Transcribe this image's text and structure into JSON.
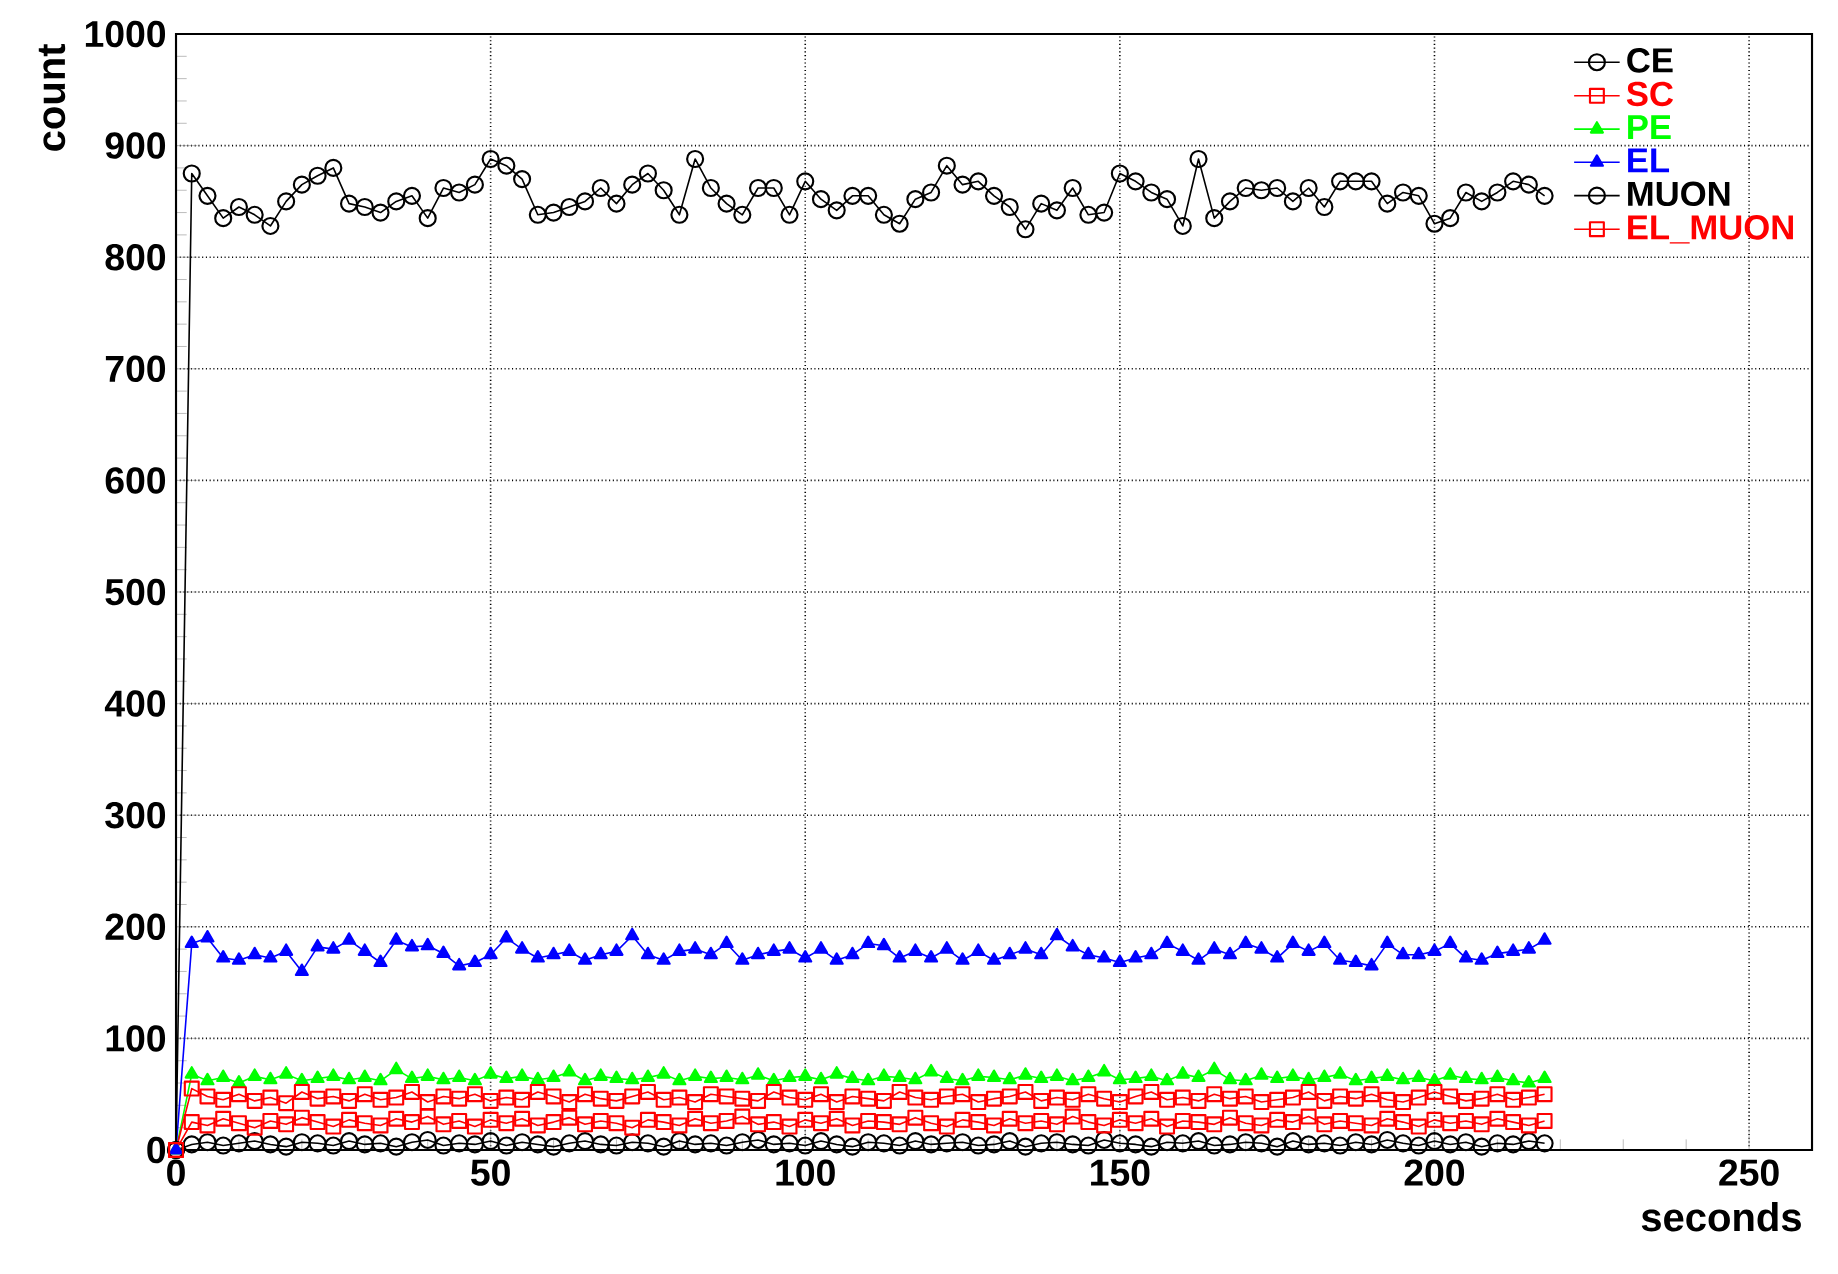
{
  "chart_data": {
    "type": "line",
    "xlabel": "seconds",
    "ylabel": "count",
    "x": [
      0,
      2.5,
      5,
      7.5,
      10,
      12.5,
      15,
      17.5,
      20,
      22.5,
      25,
      27.5,
      30,
      32.5,
      35,
      37.5,
      40,
      42.5,
      45,
      47.5,
      50,
      52.5,
      55,
      57.5,
      60,
      62.5,
      65,
      67.5,
      70,
      72.5,
      75,
      77.5,
      80,
      82.5,
      85,
      87.5,
      90,
      92.5,
      95,
      97.5,
      100,
      102.5,
      105,
      107.5,
      110,
      112.5,
      115,
      117.5,
      120,
      122.5,
      125,
      127.5,
      130,
      132.5,
      135,
      137.5,
      140,
      142.5,
      145,
      147.5,
      150,
      152.5,
      155,
      157.5,
      160,
      162.5,
      165,
      167.5,
      170,
      172.5,
      175,
      177.5,
      180,
      182.5,
      185,
      187.5,
      190,
      192.5,
      195,
      197.5,
      200,
      202.5,
      205,
      207.5,
      210,
      212.5,
      215,
      217.5
    ],
    "series": [
      {
        "name": "CE",
        "color": "#000000",
        "marker": "circle",
        "values": [
          0,
          5,
          7,
          4,
          6,
          8,
          5,
          3,
          7,
          6,
          4,
          8,
          5,
          6,
          3,
          7,
          9,
          4,
          6,
          5,
          8,
          4,
          7,
          5,
          3,
          6,
          8,
          5,
          4,
          7,
          6,
          3,
          8,
          5,
          6,
          4,
          7,
          9,
          5,
          6,
          4,
          8,
          5,
          3,
          7,
          6,
          4,
          8,
          5,
          6,
          7,
          4,
          5,
          8,
          3,
          6,
          7,
          5,
          4,
          9,
          6,
          5,
          3,
          7,
          6,
          8,
          4,
          5,
          7,
          6,
          3,
          8,
          5,
          6,
          4,
          7,
          5,
          9,
          6,
          4,
          8,
          5,
          7,
          3,
          6,
          5,
          8,
          6
        ]
      },
      {
        "name": "SC",
        "color": "#ff0000",
        "marker": "square",
        "values": [
          0,
          25,
          22,
          28,
          24,
          20,
          26,
          23,
          29,
          25,
          21,
          27,
          24,
          22,
          28,
          25,
          30,
          23,
          26,
          21,
          27,
          24,
          28,
          22,
          25,
          29,
          23,
          26,
          24,
          20,
          27,
          25,
          22,
          28,
          24,
          26,
          30,
          23,
          25,
          21,
          27,
          24,
          28,
          22,
          26,
          25,
          23,
          29,
          24,
          21,
          27,
          25,
          22,
          28,
          24,
          26,
          23,
          30,
          25,
          22,
          27,
          24,
          28,
          21,
          26,
          25,
          23,
          29,
          24,
          22,
          27,
          25,
          30,
          23,
          26,
          24,
          22,
          28,
          25,
          21,
          27,
          24,
          26,
          23,
          28,
          25,
          22,
          26
        ]
      },
      {
        "name": "PE",
        "color": "#00ff00",
        "marker": "triangle",
        "values": [
          0,
          68,
          62,
          65,
          60,
          66,
          63,
          68,
          62,
          64,
          66,
          63,
          65,
          62,
          72,
          64,
          66,
          63,
          65,
          62,
          68,
          64,
          66,
          63,
          65,
          70,
          62,
          66,
          64,
          63,
          65,
          68,
          62,
          66,
          64,
          65,
          63,
          67,
          62,
          65,
          66,
          63,
          68,
          64,
          62,
          66,
          65,
          63,
          70,
          64,
          62,
          66,
          65,
          63,
          67,
          64,
          66,
          62,
          65,
          70,
          63,
          64,
          66,
          62,
          68,
          65,
          72,
          63,
          62,
          67,
          64,
          66,
          63,
          65,
          68,
          62,
          64,
          66,
          63,
          65,
          62,
          67,
          64,
          63,
          65,
          62,
          60,
          64
        ]
      },
      {
        "name": "EL",
        "color": "#0000ff",
        "marker": "triangle",
        "values": [
          0,
          185,
          190,
          172,
          170,
          175,
          172,
          178,
          160,
          182,
          180,
          188,
          178,
          168,
          188,
          182,
          183,
          176,
          165,
          168,
          175,
          190,
          180,
          172,
          175,
          178,
          170,
          175,
          178,
          192,
          175,
          170,
          178,
          180,
          175,
          185,
          170,
          175,
          178,
          180,
          172,
          180,
          170,
          175,
          185,
          183,
          172,
          178,
          172,
          180,
          170,
          178,
          170,
          175,
          180,
          175,
          192,
          182,
          175,
          172,
          168,
          172,
          175,
          185,
          178,
          170,
          180,
          175,
          185,
          180,
          172,
          185,
          178,
          185,
          170,
          168,
          165,
          185,
          175,
          175,
          178,
          185,
          172,
          170,
          176,
          178,
          180,
          188
        ]
      },
      {
        "name": "MUON",
        "color": "#000000",
        "marker": "circle",
        "values": [
          0,
          875,
          855,
          835,
          845,
          838,
          828,
          850,
          865,
          873,
          880,
          848,
          845,
          840,
          850,
          855,
          835,
          862,
          858,
          865,
          888,
          882,
          870,
          838,
          840,
          845,
          850,
          862,
          848,
          865,
          875,
          860,
          838,
          888,
          862,
          848,
          838,
          862,
          862,
          838,
          868,
          852,
          842,
          855,
          855,
          838,
          830,
          852,
          858,
          882,
          865,
          868,
          855,
          845,
          825,
          848,
          842,
          862,
          838,
          840,
          875,
          868,
          858,
          852,
          828,
          888,
          835,
          850,
          862,
          860,
          862,
          850,
          862,
          845,
          868,
          868,
          868,
          848,
          858,
          855,
          830,
          835,
          858,
          850,
          858,
          868,
          865,
          855
        ]
      },
      {
        "name": "EL_MUON",
        "color": "#ff0000",
        "marker": "square",
        "values": [
          0,
          55,
          48,
          45,
          50,
          44,
          47,
          42,
          52,
          46,
          48,
          44,
          50,
          45,
          47,
          52,
          43,
          48,
          46,
          50,
          44,
          47,
          45,
          52,
          48,
          43,
          50,
          46,
          44,
          48,
          52,
          45,
          47,
          43,
          50,
          48,
          46,
          44,
          52,
          47,
          45,
          50,
          43,
          48,
          46,
          44,
          52,
          47,
          45,
          48,
          50,
          43,
          46,
          48,
          52,
          44,
          47,
          45,
          50,
          46,
          43,
          48,
          52,
          45,
          47,
          44,
          50,
          46,
          48,
          43,
          45,
          47,
          52,
          44,
          48,
          46,
          50,
          45,
          43,
          47,
          52,
          48,
          44,
          46,
          50,
          45,
          47,
          50
        ]
      }
    ],
    "xlim": [
      0,
      260
    ],
    "xticks": [
      0,
      50,
      100,
      150,
      200,
      250
    ],
    "ylim": [
      0,
      1000
    ],
    "yticks": [
      0,
      100,
      200,
      300,
      400,
      500,
      600,
      700,
      800,
      900,
      1000
    ],
    "grid": true,
    "legend": "top right",
    "line_style": "solid"
  }
}
